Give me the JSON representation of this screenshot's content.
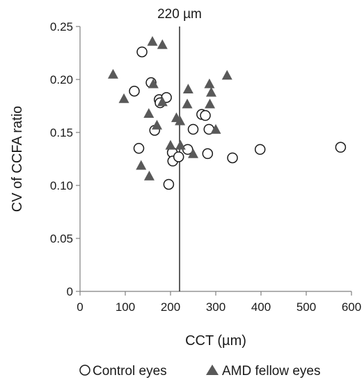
{
  "chart_data": {
    "type": "scatter",
    "title": "",
    "xlabel": "CCT (µm)",
    "ylabel": "CV of CCFA ratio",
    "xlim": [
      0,
      600
    ],
    "ylim": [
      0,
      0.25
    ],
    "xticks": [
      "0",
      "100",
      "200",
      "300",
      "400",
      "500",
      "600"
    ],
    "yticks": [
      "0",
      "0.05",
      "0.10",
      "0.15",
      "0.20",
      "0.25"
    ],
    "xtick_values": [
      0,
      100,
      200,
      300,
      400,
      500,
      600
    ],
    "ytick_values": [
      0,
      0.05,
      0.1,
      0.15,
      0.2,
      0.25
    ],
    "grid": false,
    "legend_position": "bottom",
    "reference_line": {
      "x": 220,
      "label": "220 µm"
    },
    "series": [
      {
        "name": "Control eyes",
        "marker": "open-circle",
        "points": [
          [
            137,
            0.226
          ],
          [
            120,
            0.189
          ],
          [
            157,
            0.197
          ],
          [
            175,
            0.181
          ],
          [
            177,
            0.178
          ],
          [
            191,
            0.183
          ],
          [
            165,
            0.152
          ],
          [
            130,
            0.135
          ],
          [
            204,
            0.131
          ],
          [
            205,
            0.123
          ],
          [
            218,
            0.127
          ],
          [
            196,
            0.101
          ],
          [
            238,
            0.134
          ],
          [
            250,
            0.153
          ],
          [
            269,
            0.167
          ],
          [
            277,
            0.166
          ],
          [
            285,
            0.153
          ],
          [
            282,
            0.13
          ],
          [
            337,
            0.126
          ],
          [
            398,
            0.134
          ],
          [
            576,
            0.136
          ]
        ]
      },
      {
        "name": "AMD fellow eyes",
        "marker": "filled-triangle",
        "colors": {
          "fill": "#595959"
        },
        "points": [
          [
            73,
            0.205
          ],
          [
            97,
            0.182
          ],
          [
            160,
            0.236
          ],
          [
            182,
            0.233
          ],
          [
            162,
            0.196
          ],
          [
            182,
            0.179
          ],
          [
            152,
            0.168
          ],
          [
            170,
            0.157
          ],
          [
            213,
            0.164
          ],
          [
            221,
            0.161
          ],
          [
            237,
            0.177
          ],
          [
            239,
            0.191
          ],
          [
            286,
            0.196
          ],
          [
            290,
            0.188
          ],
          [
            287,
            0.177
          ],
          [
            300,
            0.153
          ],
          [
            325,
            0.204
          ],
          [
            200,
            0.138
          ],
          [
            222,
            0.138
          ],
          [
            250,
            0.13
          ],
          [
            135,
            0.119
          ],
          [
            153,
            0.109
          ]
        ]
      }
    ]
  }
}
